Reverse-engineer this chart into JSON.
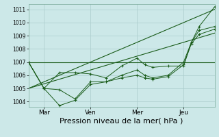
{
  "bg_color": "#cce8e8",
  "grid_color": "#aacccc",
  "line_color": "#1a5c1a",
  "marker_color": "#1a5c1a",
  "xlabel": "Pression niveau de la mer( hPa )",
  "xlabel_fontsize": 8,
  "ylim": [
    1003.6,
    1011.4
  ],
  "yticks": [
    1004,
    1005,
    1006,
    1007,
    1008,
    1009,
    1010,
    1011
  ],
  "x_tick_labels": [
    "Mar",
    "Ven",
    "Mer",
    "Jeu"
  ],
  "x_tick_positions": [
    8,
    32,
    56,
    80
  ],
  "xlim": [
    0,
    96
  ],
  "series1_x": [
    0,
    8,
    16,
    24,
    32,
    40,
    48,
    56,
    60,
    64,
    72,
    80,
    84,
    88,
    96
  ],
  "series1_y": [
    1007.0,
    1005.0,
    1006.2,
    1006.2,
    1006.1,
    1005.8,
    1006.7,
    1007.3,
    1006.8,
    1006.6,
    1006.7,
    1006.7,
    1008.5,
    1009.7,
    1011.2
  ],
  "series2_x": [
    0,
    8,
    16,
    24,
    32,
    40,
    48,
    56,
    60,
    64,
    72,
    80,
    84,
    88,
    96
  ],
  "series2_y": [
    1007.0,
    1005.0,
    1004.9,
    1004.2,
    1005.5,
    1005.5,
    1006.0,
    1006.4,
    1006.0,
    1005.8,
    1006.0,
    1007.0,
    1008.5,
    1009.4,
    1009.7
  ],
  "series3_x": [
    0,
    8,
    16,
    24,
    32,
    40,
    48,
    56,
    60,
    64,
    72,
    80,
    84,
    88,
    96
  ],
  "series3_y": [
    1007.0,
    1005.0,
    1003.7,
    1004.1,
    1005.3,
    1005.5,
    1005.8,
    1006.0,
    1005.8,
    1005.7,
    1005.9,
    1006.8,
    1008.4,
    1009.1,
    1009.5
  ],
  "trend1_x": [
    0,
    96
  ],
  "trend1_y": [
    1005.0,
    1011.0
  ],
  "trend2_x": [
    0,
    96
  ],
  "trend2_y": [
    1005.0,
    1009.2
  ],
  "trend3_x": [
    0,
    96
  ],
  "trend3_y": [
    1007.0,
    1007.0
  ]
}
